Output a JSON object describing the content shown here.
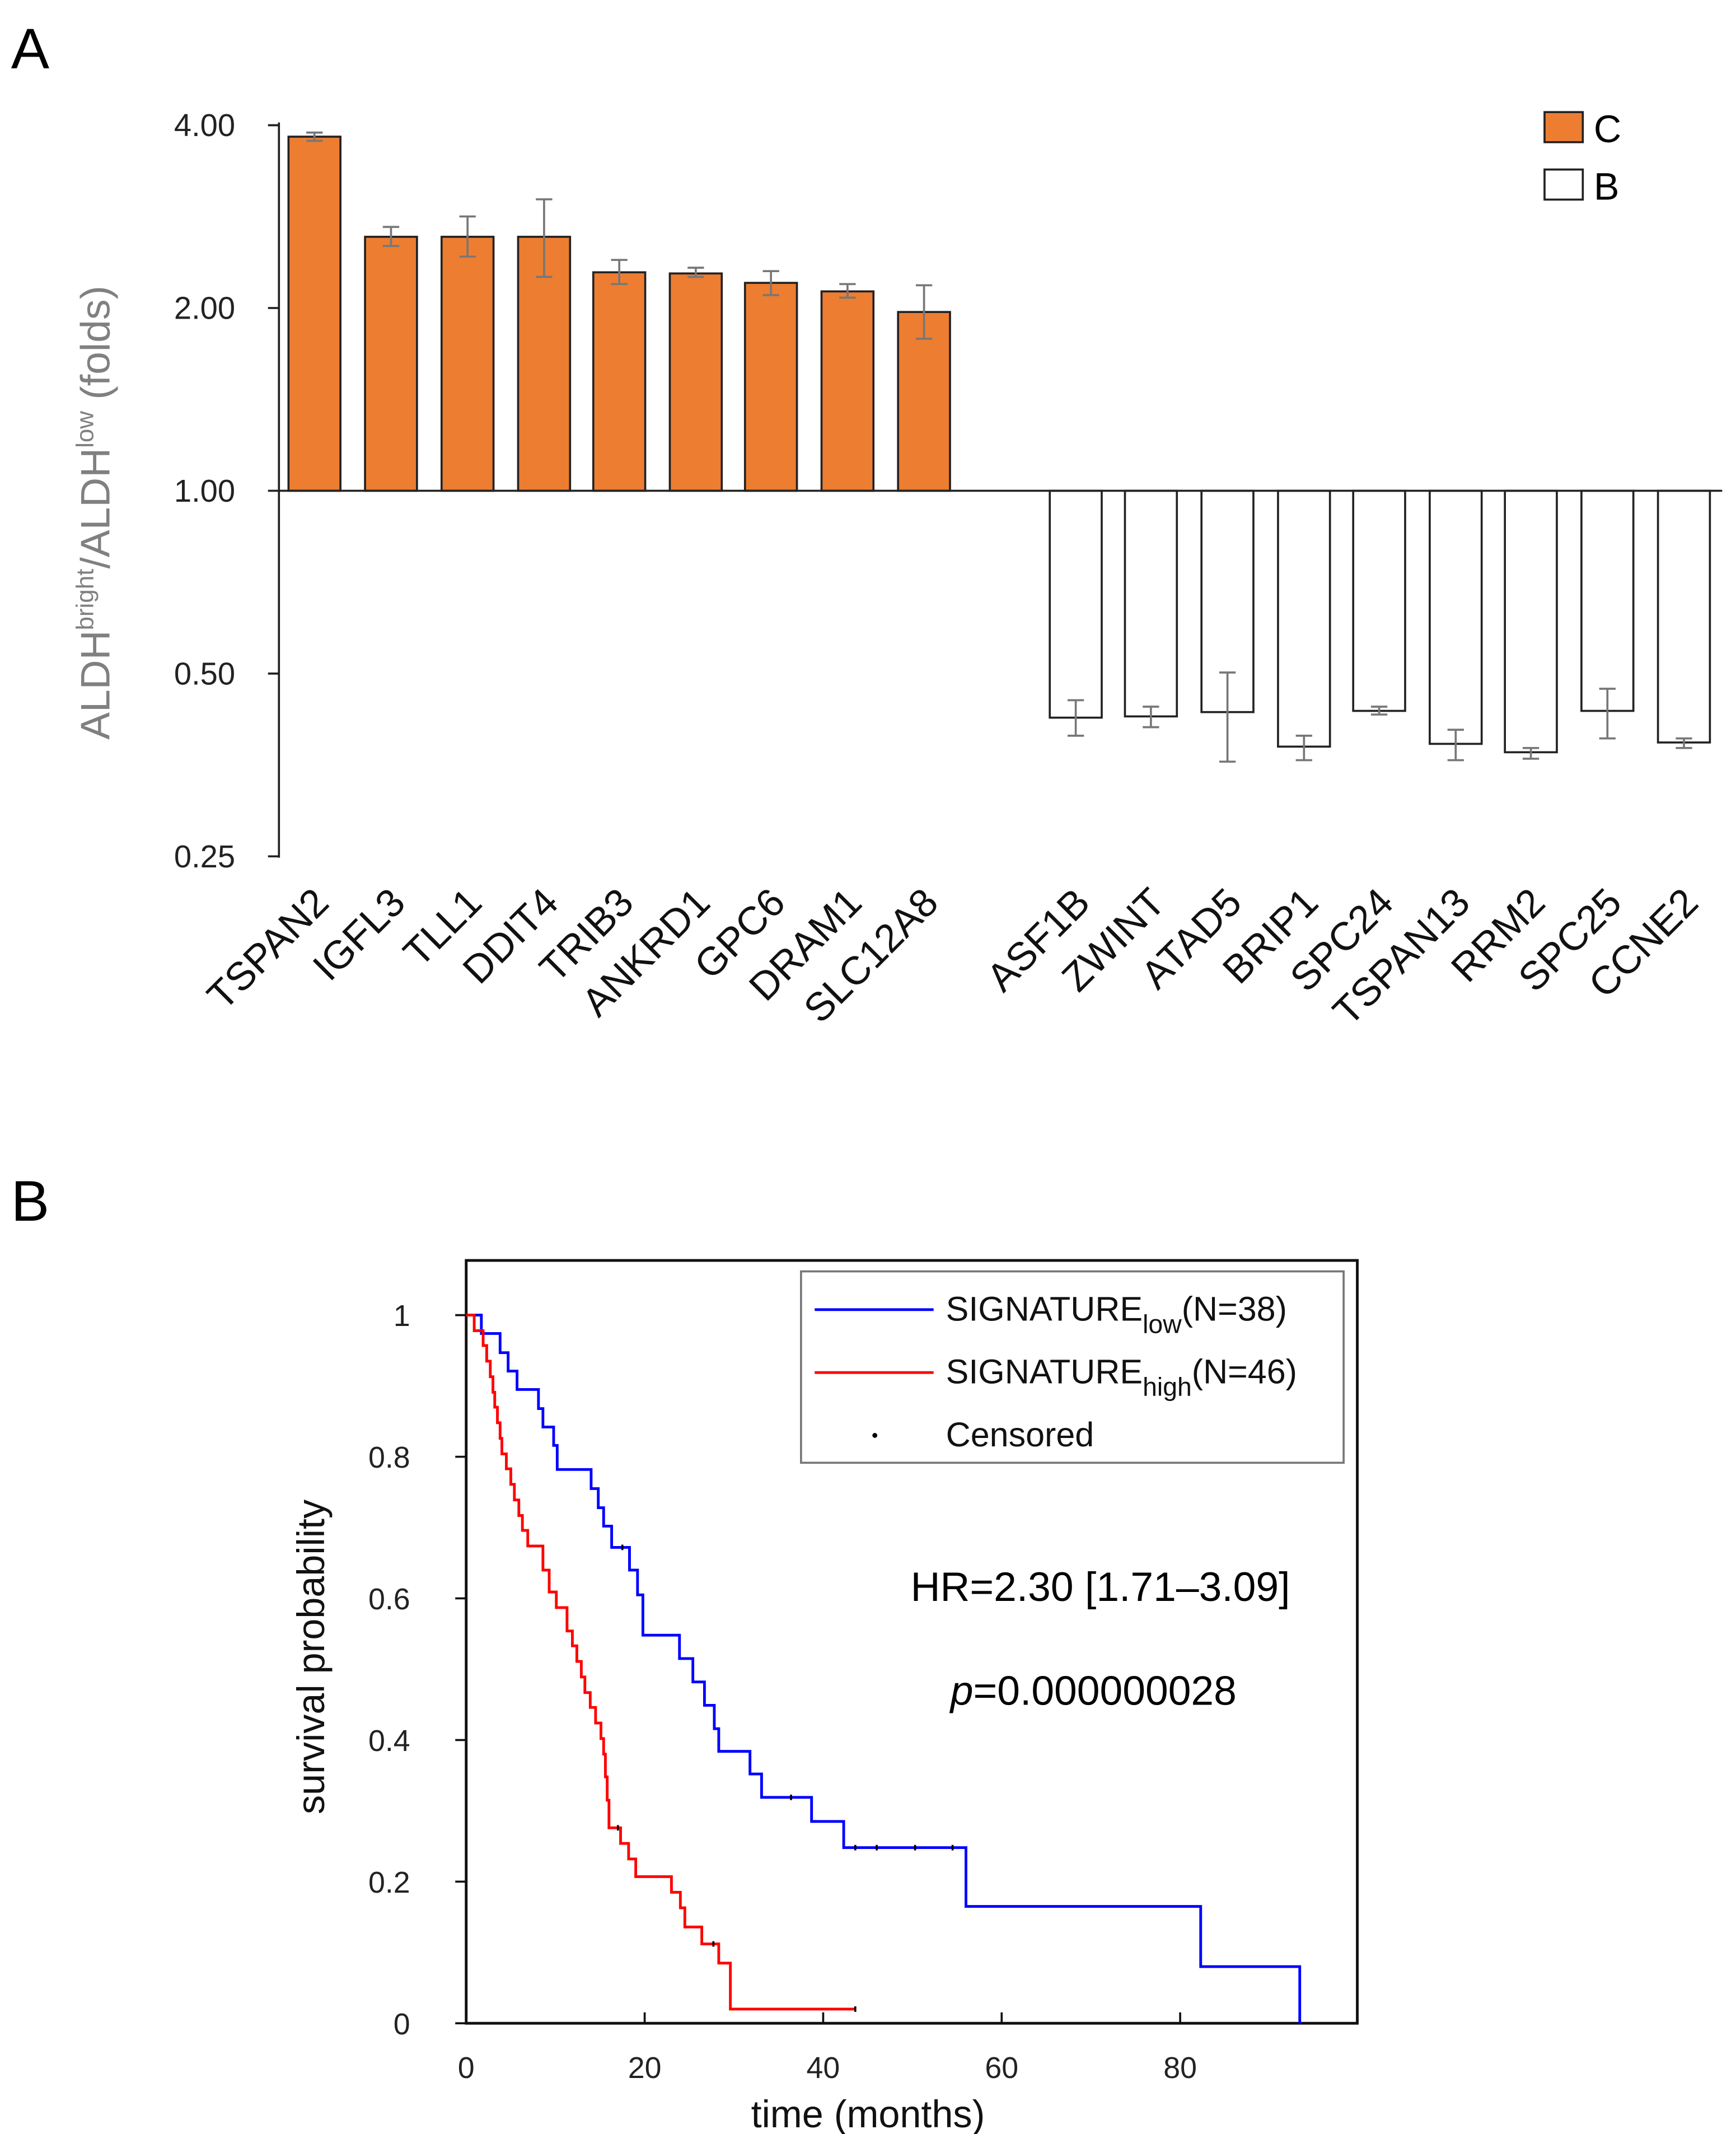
{
  "panels": {
    "a": "A",
    "b": "B"
  },
  "chart_data": [
    {
      "type": "bar",
      "title": "",
      "ylabel": {
        "main": "ALDH",
        "sup1": "bright",
        "mid": "/ALDH",
        "sup2": "low",
        "tail": " (folds)"
      },
      "yscale": "log2",
      "ylim": [
        0.25,
        4.0
      ],
      "yticks": [
        "4.00",
        "2.00",
        "1.00",
        "0.50",
        "0.25"
      ],
      "ytick_values": [
        4,
        2,
        1,
        0.5,
        0.25
      ],
      "baseline": 1.0,
      "legend": {
        "placement": "top-right",
        "entries": [
          {
            "name": "C",
            "color": "#ED7D31"
          },
          {
            "name": "B",
            "color": "#FFFFFF"
          }
        ]
      },
      "series": [
        {
          "name": "C",
          "color": "#ED7D31",
          "categories": [
            "TSPAN2",
            "IGFL3",
            "TLL1",
            "DDIT4",
            "TRIB3",
            "ANKRD1",
            "GPC6",
            "DRAM1",
            "SLC12A8"
          ],
          "values": [
            3.83,
            2.62,
            2.62,
            2.62,
            2.29,
            2.28,
            2.2,
            2.13,
            1.97
          ],
          "err_low": [
            3.77,
            2.53,
            2.43,
            2.25,
            2.19,
            2.25,
            2.1,
            2.08,
            1.78
          ],
          "err_high": [
            3.89,
            2.72,
            2.83,
            3.02,
            2.4,
            2.33,
            2.3,
            2.19,
            2.18
          ]
        },
        {
          "name": "B",
          "color": "#FFFFFF",
          "categories": [
            "ASF1B",
            "ZWINT",
            "ATAD5",
            "BRIP1",
            "SPC24",
            "TSPAN13",
            "RRM2",
            "SPC25",
            "CCNE2"
          ],
          "values": [
            0.423,
            0.425,
            0.432,
            0.379,
            0.434,
            0.383,
            0.371,
            0.434,
            0.385
          ],
          "err_low": [
            0.395,
            0.408,
            0.358,
            0.36,
            0.428,
            0.36,
            0.362,
            0.391,
            0.377
          ],
          "err_high": [
            0.452,
            0.441,
            0.502,
            0.395,
            0.441,
            0.404,
            0.377,
            0.472,
            0.391
          ]
        }
      ]
    },
    {
      "type": "line",
      "subtype": "kaplan-meier",
      "xlabel": "time (months)",
      "ylabel": "survival probability",
      "xlim": [
        0,
        97
      ],
      "ylim": [
        0,
        1.08
      ],
      "xticks": [
        "0",
        "20",
        "40",
        "60",
        "80"
      ],
      "xtick_values": [
        0,
        20,
        40,
        60,
        80
      ],
      "yticks": [
        "1",
        "0.8",
        "0.6",
        "0.4",
        "0.2",
        "0"
      ],
      "ytick_values": [
        1,
        0.8,
        0.6,
        0.4,
        0.2,
        0
      ],
      "legend": {
        "placement": "top-right",
        "entries": [
          {
            "base": "SIGNATURE",
            "sub": "low",
            "tail": "(N=38)",
            "color": "#0000FF"
          },
          {
            "base": "SIGNATURE",
            "sub": "high",
            "tail": "(N=46)",
            "color": "#FF0000"
          },
          {
            "base": "Censored",
            "sub": "",
            "tail": "",
            "color": "#000000"
          }
        ]
      },
      "annotations": {
        "hr": "HR=2.30 [1.71–3.09]",
        "p_italic": "p",
        "p_value": "=0.000000028"
      },
      "series": [
        {
          "name": "SIGNATURE low",
          "color": "#0000FF",
          "steps": [
            [
              0,
              1
            ],
            [
              1.7,
              0.974
            ],
            [
              3.8,
              0.947
            ],
            [
              4.7,
              0.921
            ],
            [
              5.7,
              0.895
            ],
            [
              8.1,
              0.868
            ],
            [
              8.6,
              0.842
            ],
            [
              9.8,
              0.816
            ],
            [
              10.2,
              0.782
            ],
            [
              14.0,
              0.755
            ],
            [
              14.8,
              0.728
            ],
            [
              15.4,
              0.702
            ],
            [
              16.3,
              0.672
            ],
            [
              18.3,
              0.64
            ],
            [
              19.2,
              0.605
            ],
            [
              19.8,
              0.548
            ],
            [
              23.9,
              0.515
            ],
            [
              25.4,
              0.482
            ],
            [
              26.7,
              0.449
            ],
            [
              27.8,
              0.416
            ],
            [
              28.3,
              0.384
            ],
            [
              31.8,
              0.352
            ],
            [
              33.1,
              0.319
            ],
            [
              38.7,
              0.285
            ],
            [
              42.3,
              0.248
            ],
            [
              56.0,
              0.165
            ],
            [
              82.3,
              0.08
            ],
            [
              93.4,
              0.0
            ]
          ],
          "end": 93.4,
          "censored": [
            17.5,
            36.4,
            43.6,
            46.0,
            50.3,
            54.5
          ]
        },
        {
          "name": "SIGNATURE high",
          "color": "#FF0000",
          "steps": [
            [
              0,
              1
            ],
            [
              0.9,
              0.978
            ],
            [
              1.9,
              0.957
            ],
            [
              2.3,
              0.935
            ],
            [
              2.7,
              0.913
            ],
            [
              3.0,
              0.891
            ],
            [
              3.2,
              0.87
            ],
            [
              3.5,
              0.848
            ],
            [
              3.8,
              0.826
            ],
            [
              4.0,
              0.804
            ],
            [
              4.5,
              0.783
            ],
            [
              5.0,
              0.761
            ],
            [
              5.4,
              0.739
            ],
            [
              5.9,
              0.717
            ],
            [
              6.3,
              0.696
            ],
            [
              6.9,
              0.674
            ],
            [
              8.6,
              0.64
            ],
            [
              9.3,
              0.609
            ],
            [
              10.1,
              0.587
            ],
            [
              11.3,
              0.554
            ],
            [
              11.9,
              0.533
            ],
            [
              12.4,
              0.511
            ],
            [
              12.9,
              0.489
            ],
            [
              13.3,
              0.467
            ],
            [
              13.9,
              0.446
            ],
            [
              14.5,
              0.424
            ],
            [
              15.1,
              0.402
            ],
            [
              15.4,
              0.38
            ],
            [
              15.6,
              0.348
            ],
            [
              15.8,
              0.315
            ],
            [
              16.0,
              0.276
            ],
            [
              17.3,
              0.254
            ],
            [
              18.2,
              0.232
            ],
            [
              19.0,
              0.207
            ],
            [
              23.0,
              0.185
            ],
            [
              24.0,
              0.163
            ],
            [
              24.5,
              0.136
            ],
            [
              26.4,
              0.112
            ],
            [
              28.3,
              0.085
            ],
            [
              29.6,
              0.02
            ]
          ],
          "end": 43.6,
          "censored": [
            17.0,
            27.7,
            43.6
          ]
        }
      ]
    }
  ]
}
